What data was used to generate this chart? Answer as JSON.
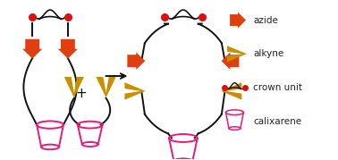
{
  "fig_width": 3.78,
  "fig_height": 1.79,
  "dpi": 100,
  "bg_color": "#ffffff",
  "azide_color": "#E04010",
  "alkyne_color": "#C89000",
  "crown_color": "#DD1010",
  "calix_color": "#E8197A",
  "line_color": "#111111",
  "text_color": "#222222",
  "legend_labels": [
    "azide",
    "alkyne",
    "crown unit",
    "calixarene"
  ]
}
